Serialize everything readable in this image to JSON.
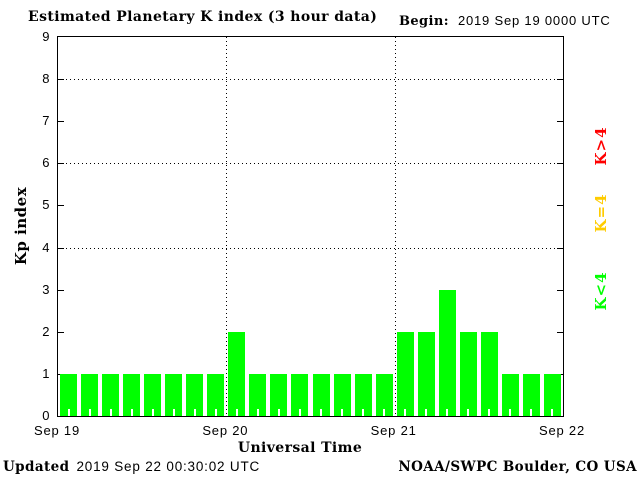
{
  "title": "Estimated Planetary K index (3 hour data)",
  "begin_label": "Begin:",
  "begin_value": "2019 Sep 19 0000 UTC",
  "footer": {
    "updated_label": "Updated",
    "updated_value": "2019 Sep 22 00:30:02 UTC",
    "source": "NOAA/SWPC Boulder, CO USA"
  },
  "chart_data": {
    "type": "bar",
    "title": "Estimated Planetary K index (3 hour data)",
    "begin": "2019 Sep 19 0000 UTC",
    "xlabel": "Universal Time",
    "ylabel": "Kp index",
    "ylim": [
      0,
      9
    ],
    "yticks": [
      0,
      1,
      2,
      3,
      4,
      5,
      6,
      7,
      8,
      9
    ],
    "grid_y": [
      4,
      6,
      8
    ],
    "grid_x_day_boundaries": [
      "Sep 20",
      "Sep 21"
    ],
    "x_day_labels": [
      "Sep 19",
      "Sep 20",
      "Sep 21",
      "Sep 22"
    ],
    "hours_per_bar": 3,
    "bars_per_day": 8,
    "values": [
      1,
      1,
      1,
      1,
      1,
      1,
      1,
      1,
      2,
      1,
      1,
      1,
      1,
      1,
      1,
      1,
      2,
      2,
      3,
      2,
      2,
      1,
      1,
      1
    ],
    "colors": {
      "k_lt_4": "#00ff00",
      "k_eq_4": "#ffcc00",
      "k_gt_4": "#ff0000"
    },
    "color_rule": "green when K<4, yellow when K=4, red when K>4",
    "legend": [
      {
        "label": "K>4",
        "color": "#ff0000"
      },
      {
        "label": "K=4",
        "color": "#ffcc00"
      },
      {
        "label": "K<4",
        "color": "#00ff00"
      }
    ],
    "legend_position": "right, rotated 90deg"
  }
}
